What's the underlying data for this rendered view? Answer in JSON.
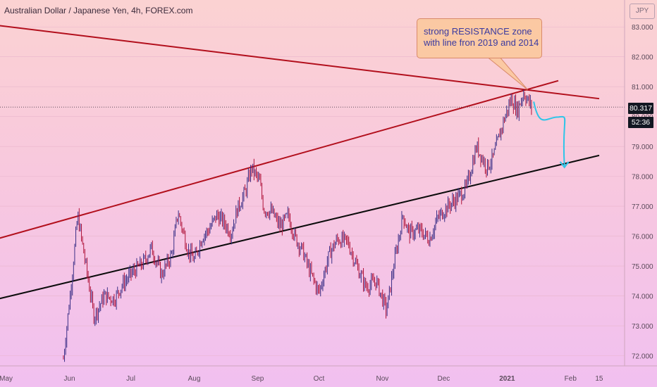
{
  "header": {
    "symbol_title": "Australian Dollar / Japanese Yen, 4h, FOREX.com",
    "currency_button": "JPY"
  },
  "price_tags": {
    "last_price": "80.317",
    "countdown": "52:36"
  },
  "annotation": {
    "text": "strong RESISTANCE zone with line fron 2019 and 2014"
  },
  "colors": {
    "candle_up": "#3b2f86",
    "candle_down": "#b0143a",
    "resistance_line": "#b20f1c",
    "support_line": "#0c0c0c",
    "arrow": "#2ec5e8",
    "axis_text": "#5a4a5a"
  },
  "chart_data": {
    "type": "candlestick",
    "title": "Australian Dollar / Japanese Yen, 4h, FOREX.com",
    "ylim": [
      71.8,
      83.5
    ],
    "y_ticks": [
      "72.000",
      "73.000",
      "74.000",
      "75.000",
      "76.000",
      "77.000",
      "78.000",
      "79.000",
      "80.000",
      "81.000",
      "82.000",
      "83.000"
    ],
    "x_ticks": [
      "May",
      "Jun",
      "Jul",
      "Aug",
      "Sep",
      "Oct",
      "Nov",
      "Dec",
      "2021",
      "Feb",
      "15"
    ],
    "last_price": 80.317,
    "series": [
      {
        "name": "AUDJPY close (approx.)",
        "x": [
          "2020-05-28",
          "2020-06-01",
          "2020-06-04",
          "2020-06-08",
          "2020-06-12",
          "2020-06-17",
          "2020-06-22",
          "2020-06-26",
          "2020-07-01",
          "2020-07-06",
          "2020-07-10",
          "2020-07-15",
          "2020-07-20",
          "2020-07-23",
          "2020-07-28",
          "2020-07-31",
          "2020-08-04",
          "2020-08-07",
          "2020-08-11",
          "2020-08-14",
          "2020-08-18",
          "2020-08-21",
          "2020-08-25",
          "2020-08-28",
          "2020-09-01",
          "2020-09-03",
          "2020-09-07",
          "2020-09-11",
          "2020-09-15",
          "2020-09-18",
          "2020-09-22",
          "2020-09-25",
          "2020-09-30",
          "2020-10-05",
          "2020-10-09",
          "2020-10-14",
          "2020-10-19",
          "2020-10-23",
          "2020-10-28",
          "2020-11-02",
          "2020-11-06",
          "2020-11-10",
          "2020-11-13",
          "2020-11-18",
          "2020-11-23",
          "2020-11-27",
          "2020-12-02",
          "2020-12-07",
          "2020-12-11",
          "2020-12-16",
          "2020-12-21",
          "2020-12-24",
          "2020-12-29",
          "2021-01-02",
          "2021-01-05",
          "2021-01-08",
          "2021-01-12"
        ],
        "values": [
          71.9,
          74.5,
          76.7,
          75.0,
          73.3,
          74.0,
          73.9,
          74.4,
          74.8,
          75.1,
          75.6,
          74.7,
          75.4,
          76.8,
          75.5,
          75.2,
          76.0,
          76.2,
          76.7,
          76.5,
          76.1,
          76.9,
          77.5,
          78.3,
          77.8,
          76.9,
          76.8,
          76.3,
          76.7,
          76.0,
          75.5,
          74.9,
          74.1,
          75.4,
          75.9,
          75.8,
          74.9,
          74.3,
          74.5,
          73.5,
          75.2,
          76.7,
          76.1,
          76.2,
          75.9,
          76.6,
          77.0,
          77.3,
          77.6,
          79.0,
          78.3,
          78.6,
          79.8,
          80.6,
          80.2,
          80.8,
          80.3
        ]
      }
    ],
    "lines": [
      {
        "name": "resistance upper",
        "from": [
          "2020-04-20",
          83.1
        ],
        "to": [
          "2021-02-14",
          80.6
        ]
      },
      {
        "name": "resistance rising",
        "from": [
          "2020-04-20",
          75.8
        ],
        "to": [
          "2021-01-25",
          81.2
        ]
      },
      {
        "name": "support",
        "from": [
          "2020-04-20",
          73.8
        ],
        "to": [
          "2021-02-14",
          78.7
        ]
      }
    ],
    "projection": {
      "from": [
        "2021-01-13",
        80.5
      ],
      "to": [
        "2021-01-28",
        78.3
      ]
    }
  }
}
